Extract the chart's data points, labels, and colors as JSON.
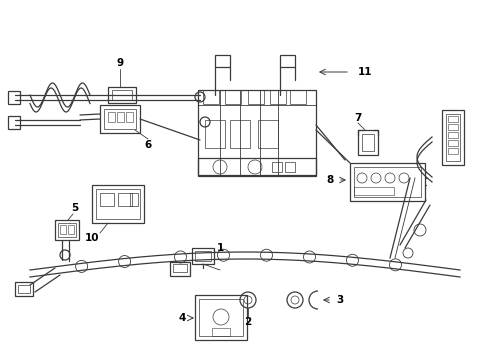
{
  "background_color": "#ffffff",
  "line_color": "#3a3a3a",
  "label_color": "#000000",
  "fig_width": 4.9,
  "fig_height": 3.6,
  "dpi": 100
}
